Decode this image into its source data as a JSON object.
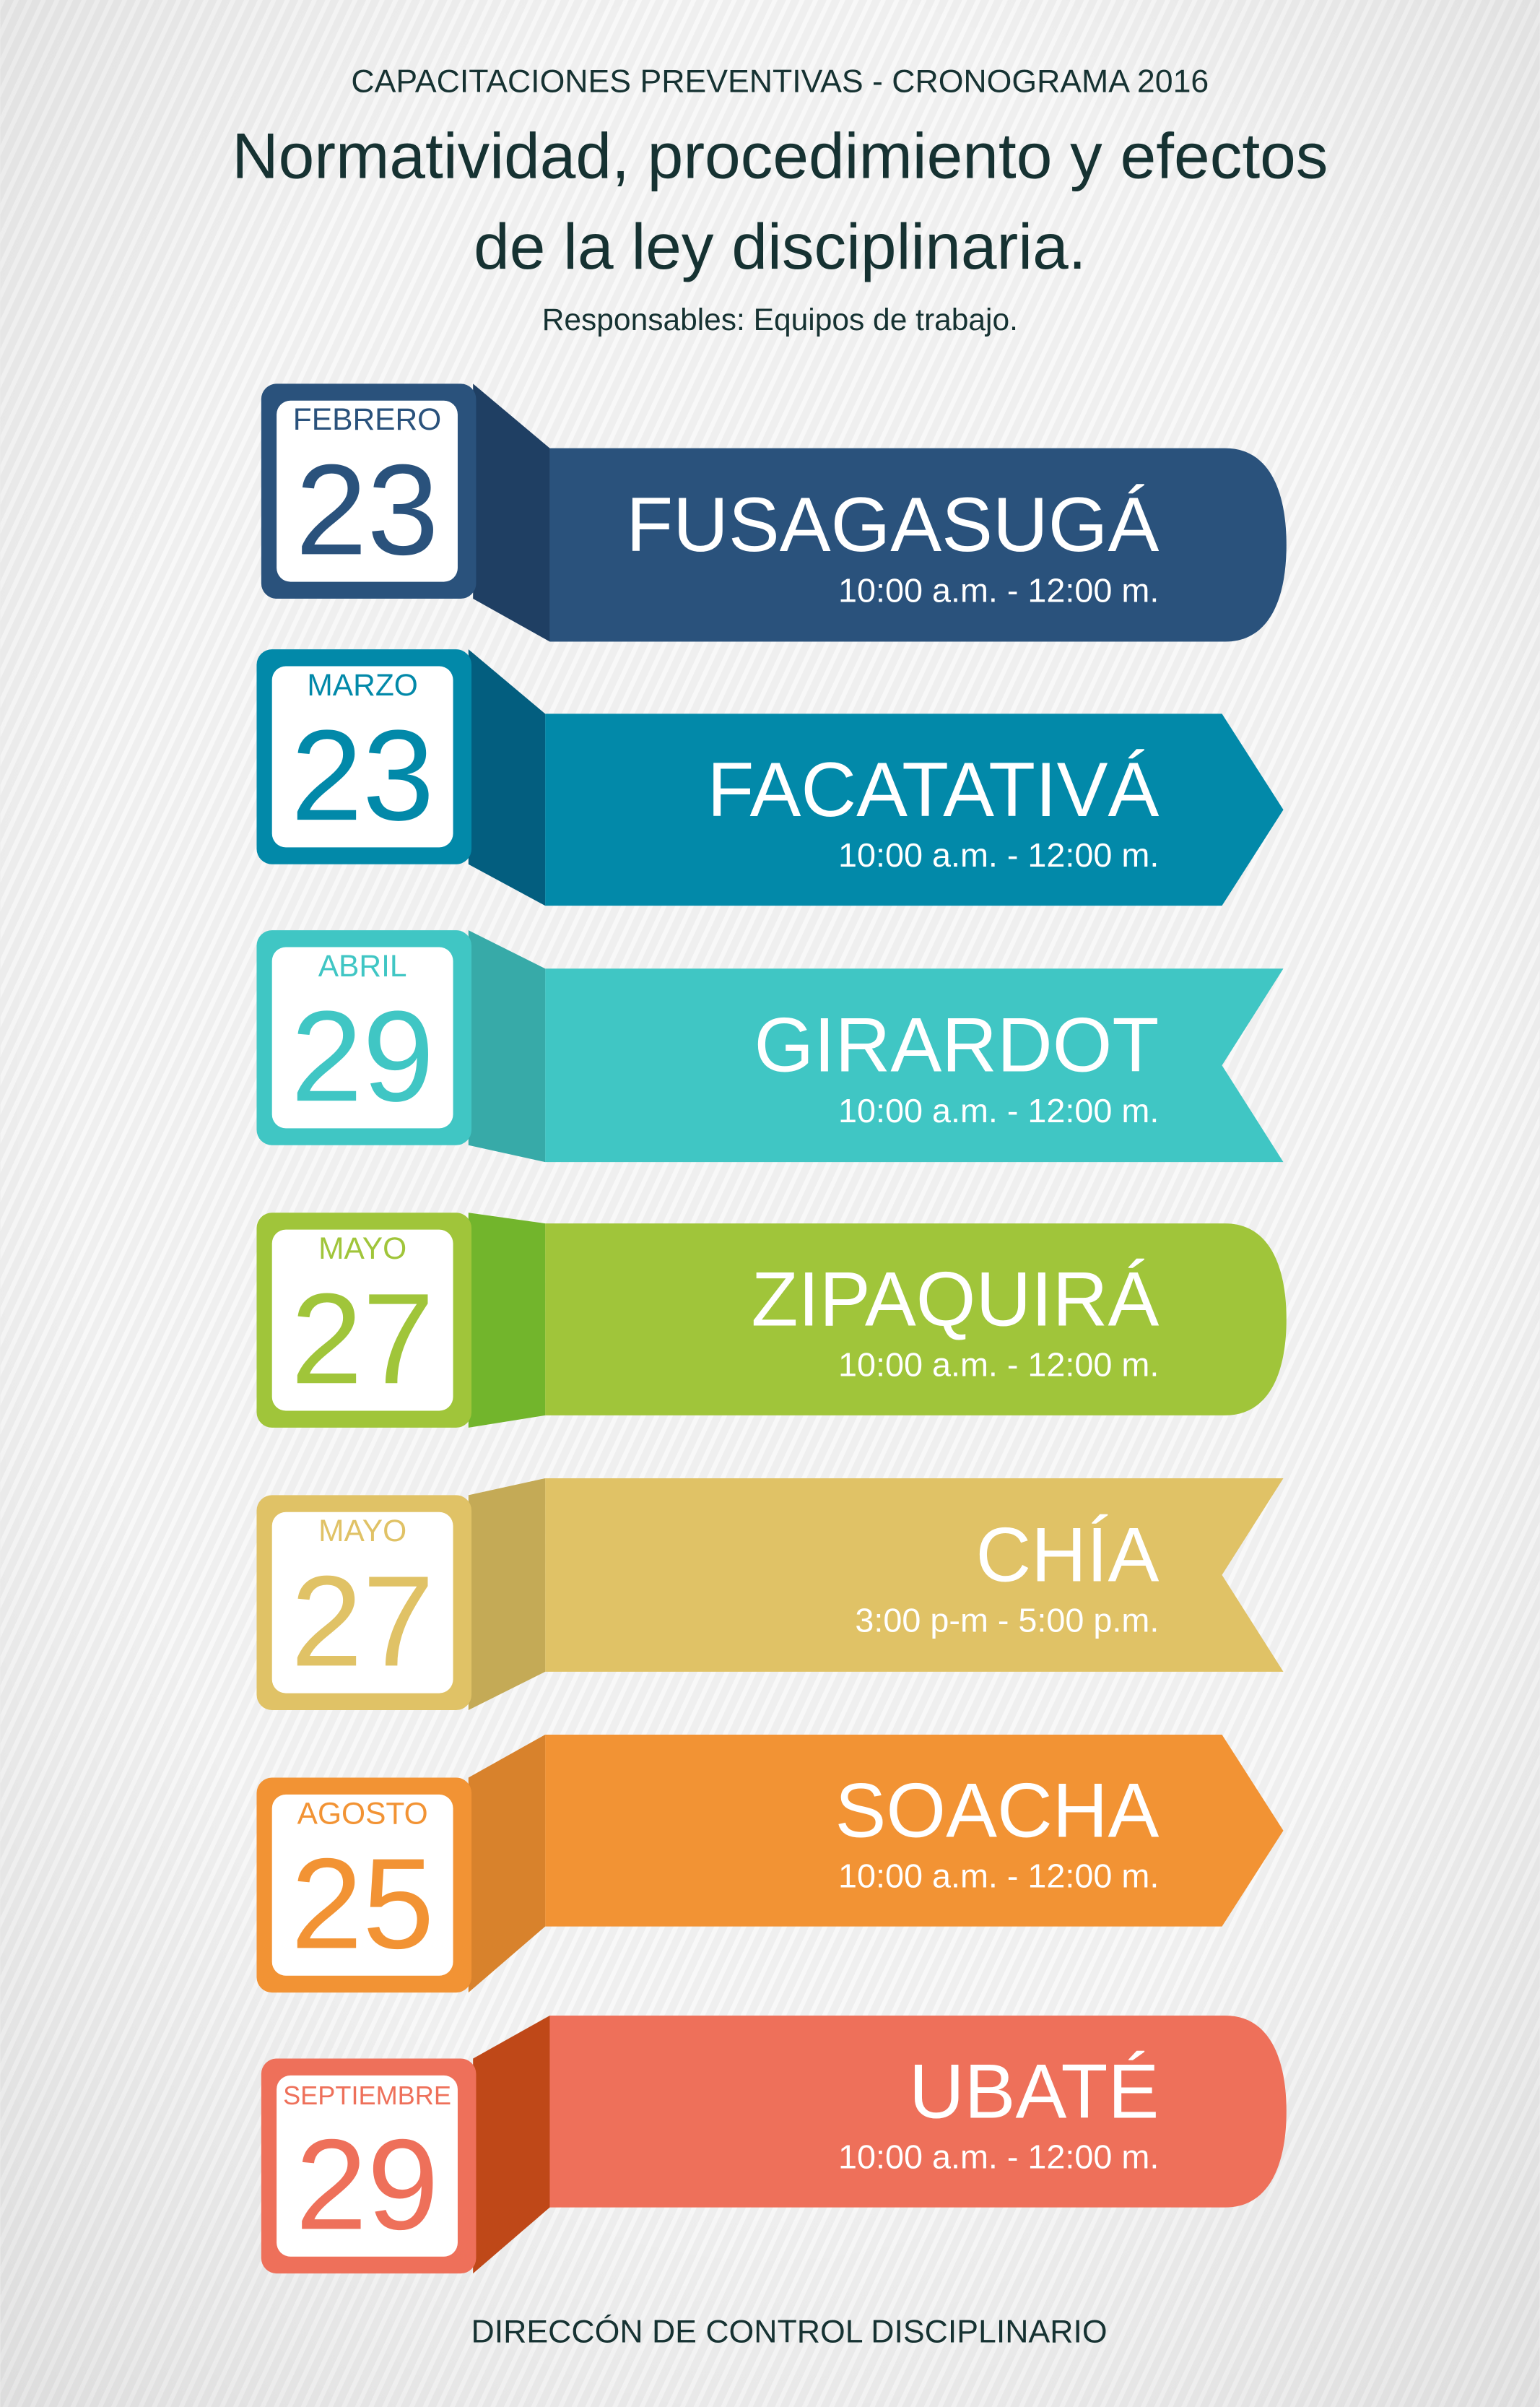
{
  "header": {
    "kicker": "CAPACITACIONES PREVENTIVAS - CRONOGRAMA 2016",
    "title_line1": "Normatividad, procedimiento y efectos",
    "title_line2": "de la ley disciplinaria.",
    "subtitle": "Responsables: Equipos de trabajo."
  },
  "events": [
    {
      "month": "FEBRERO",
      "day": "23",
      "city": "FUSAGASUGÁ",
      "time": "10:00 a.m. - 12:00 m.",
      "shape": "rounded",
      "color": "#2a527c",
      "fold_color": "#1f3f63"
    },
    {
      "month": "MARZO",
      "day": "23",
      "city": "FACATATIVÁ",
      "time": "10:00 a.m. - 12:00 m.",
      "shape": "arrow",
      "color": "#0289a9",
      "fold_color": "#035e7f"
    },
    {
      "month": "ABRIL",
      "day": "29",
      "city": "GIRARDOT",
      "time": "10:00 a.m. - 12:00 m.",
      "shape": "notch",
      "color": "#40c6c4",
      "fold_color": "#37aaa8"
    },
    {
      "month": "MAYO",
      "day": "27",
      "city": "ZIPAQUIRÁ",
      "time": "10:00 a.m. - 12:00 m.",
      "shape": "rounded",
      "color": "#a0c53a",
      "fold_color": "#72b52c"
    },
    {
      "month": "MAYO",
      "day": "27",
      "city": "CHÍA",
      "time": "3:00 p-m - 5:00 p.m.",
      "shape": "notch",
      "color": "#e0c266",
      "fold_color": "#c4aa56"
    },
    {
      "month": "AGOSTO",
      "day": "25",
      "city": "SOACHA",
      "time": "10:00 a.m. - 12:00 m.",
      "shape": "arrow",
      "color": "#f29334",
      "fold_color": "#d8822c"
    },
    {
      "month": "SEPTIEMBRE",
      "day": "29",
      "city": "UBATÉ",
      "time": "10:00 a.m. - 12:00 m.",
      "shape": "rounded",
      "color": "#ee705a",
      "fold_color": "#bf4818"
    }
  ],
  "footer": {
    "text": "DIRECCÓN DE CONTROL DISCIPLINARIO"
  },
  "colors": {
    "heading": "#163232",
    "background": "#ececec"
  }
}
